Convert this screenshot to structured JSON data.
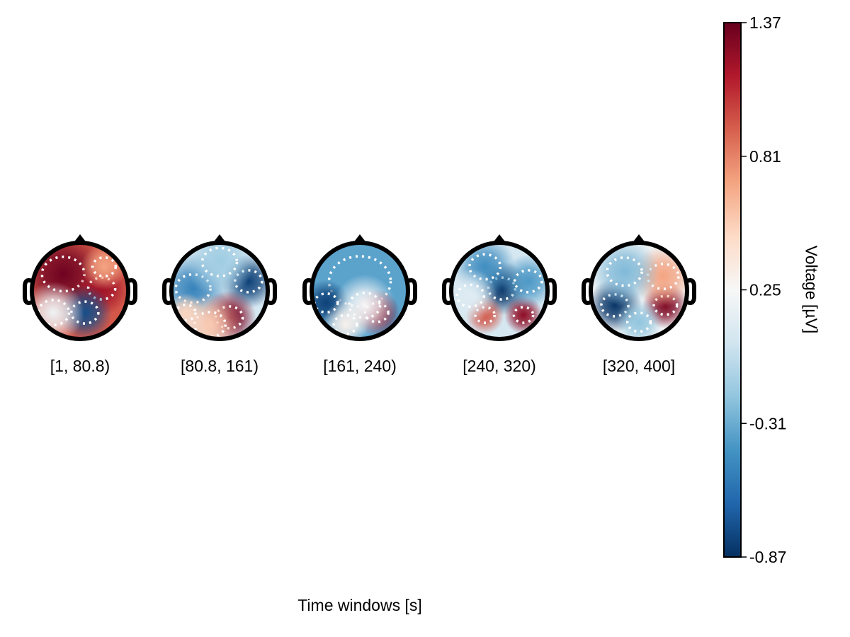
{
  "chart_data": {
    "type": "heatmap",
    "subtype": "topoplot-series",
    "xlabel": "Time windows [s]",
    "windows": [
      "[1, 80.8)",
      "[80.8, 161)",
      "[161, 240)",
      "[240, 320)",
      "[320, 400]"
    ],
    "colorbar": {
      "label": "Voltage [µV]",
      "colormap": "RdBu (reversed)",
      "range": [
        -0.87,
        1.37
      ],
      "ticks": [
        1.37,
        0.81,
        0.25,
        -0.31,
        -0.87
      ],
      "tick_labels": [
        "1.37",
        "0.81",
        "0.25",
        "-0.31",
        "-0.87"
      ],
      "colors": [
        "#053061",
        "#2166ac",
        "#4393c3",
        "#92c5de",
        "#d1e5f0",
        "#f7f7f7",
        "#fddbc7",
        "#f4a582",
        "#d6604d",
        "#b2182b",
        "#67001f"
      ]
    },
    "contour_style": "white dotted",
    "grid": false
  }
}
